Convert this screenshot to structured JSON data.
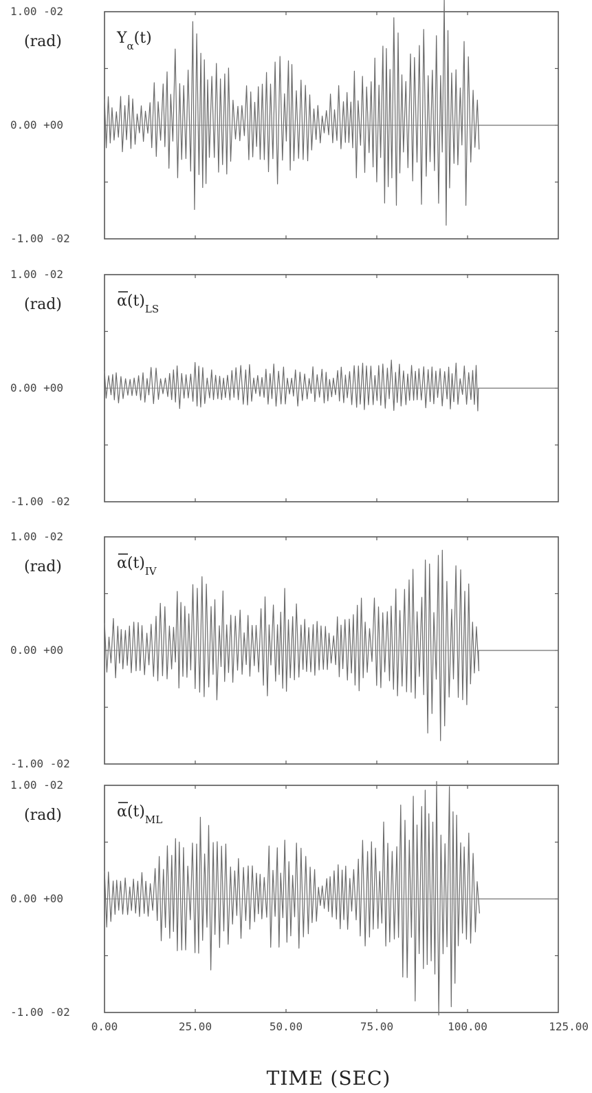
{
  "figure": {
    "xlabel": "TIME (SEC)",
    "xtick_labels": [
      "0.00",
      "25.00",
      "50.00",
      "75.00",
      "100.00",
      "125.00"
    ]
  },
  "chart_data": [
    {
      "type": "line",
      "title": "Y",
      "title_subscript": "α",
      "title_suffix": "(t)",
      "ylabel": "(rad)",
      "ytick_labels": [
        "1.00 -02",
        "0.00 +00",
        "-1.00 -02"
      ],
      "xlim": [
        0,
        125
      ],
      "ylim": [
        -0.01,
        0.01
      ],
      "grid": false,
      "series": [
        {
          "amp_env_t": [
            0,
            5,
            10,
            15,
            20,
            25,
            30,
            35,
            40,
            45,
            50,
            55,
            60,
            65,
            70,
            75,
            80,
            85,
            90,
            95,
            100,
            103
          ],
          "amp_env_v": [
            0.0028,
            0.0032,
            0.0022,
            0.0048,
            0.0088,
            0.0092,
            0.0072,
            0.0048,
            0.0032,
            0.0058,
            0.0062,
            0.0042,
            0.0018,
            0.0042,
            0.0052,
            0.0062,
            0.0098,
            0.0118,
            0.0112,
            0.0118,
            0.0068,
            0.003
          ],
          "t_end": 103,
          "after": 0
        }
      ]
    },
    {
      "type": "line",
      "title": "α",
      "title_subscript": "LS",
      "title_suffix": "(t)",
      "ylabel": "(rad)",
      "ytick_labels": [
        "1.00 -02",
        "0.00 +00",
        "-1.00 -02"
      ],
      "xlim": [
        0,
        125
      ],
      "ylim": [
        -0.01,
        0.01
      ],
      "grid": false,
      "series": [
        {
          "amp_env_t": [
            0,
            5,
            10,
            15,
            20,
            25,
            30,
            35,
            40,
            45,
            50,
            55,
            60,
            65,
            70,
            75,
            80,
            85,
            90,
            95,
            100,
            103
          ],
          "amp_env_v": [
            0.0018,
            0.0014,
            0.0016,
            0.0022,
            0.0024,
            0.0026,
            0.0018,
            0.0018,
            0.0022,
            0.002,
            0.0024,
            0.0018,
            0.002,
            0.0022,
            0.0024,
            0.0022,
            0.0026,
            0.0024,
            0.002,
            0.0024,
            0.0022,
            0.0022
          ],
          "t_end": 103,
          "after": 0
        }
      ]
    },
    {
      "type": "line",
      "title": "α",
      "title_subscript": "IV",
      "title_suffix": "(t)",
      "ylabel": "(rad)",
      "ytick_labels": [
        "1.00 -02",
        "0.00 +00",
        "-1.00 -02"
      ],
      "xlim": [
        0,
        125
      ],
      "ylim": [
        -0.01,
        0.01
      ],
      "grid": false,
      "series": [
        {
          "amp_env_t": [
            0,
            5,
            10,
            15,
            20,
            25,
            30,
            35,
            40,
            45,
            50,
            55,
            60,
            65,
            70,
            75,
            80,
            85,
            90,
            95,
            100,
            103
          ],
          "amp_env_v": [
            0.0028,
            0.003,
            0.0024,
            0.0042,
            0.0062,
            0.008,
            0.0068,
            0.004,
            0.0034,
            0.0054,
            0.0058,
            0.004,
            0.0022,
            0.004,
            0.005,
            0.0058,
            0.008,
            0.0098,
            0.0092,
            0.0102,
            0.0066,
            0.0032
          ],
          "t_end": 103,
          "after": 0
        }
      ]
    },
    {
      "type": "line",
      "title": "α",
      "title_subscript": "ML",
      "title_suffix": "(t)",
      "ylabel": "(rad)",
      "ytick_labels": [
        "1.00 -02",
        "0.00 +00",
        "-1.00 -02"
      ],
      "xlim": [
        0,
        125
      ],
      "ylim": [
        -0.01,
        0.01
      ],
      "grid": false,
      "series": [
        {
          "amp_env_t": [
            0,
            5,
            10,
            15,
            20,
            25,
            30,
            35,
            40,
            45,
            50,
            55,
            60,
            65,
            70,
            75,
            80,
            85,
            90,
            95,
            100,
            103
          ],
          "amp_env_v": [
            0.0028,
            0.003,
            0.0024,
            0.0042,
            0.0064,
            0.0082,
            0.0068,
            0.0042,
            0.0034,
            0.0054,
            0.006,
            0.0042,
            0.0022,
            0.0042,
            0.0052,
            0.0062,
            0.0088,
            0.011,
            0.0104,
            0.0116,
            0.0066,
            0.0032
          ],
          "t_end": 103,
          "after": 0
        }
      ]
    }
  ]
}
